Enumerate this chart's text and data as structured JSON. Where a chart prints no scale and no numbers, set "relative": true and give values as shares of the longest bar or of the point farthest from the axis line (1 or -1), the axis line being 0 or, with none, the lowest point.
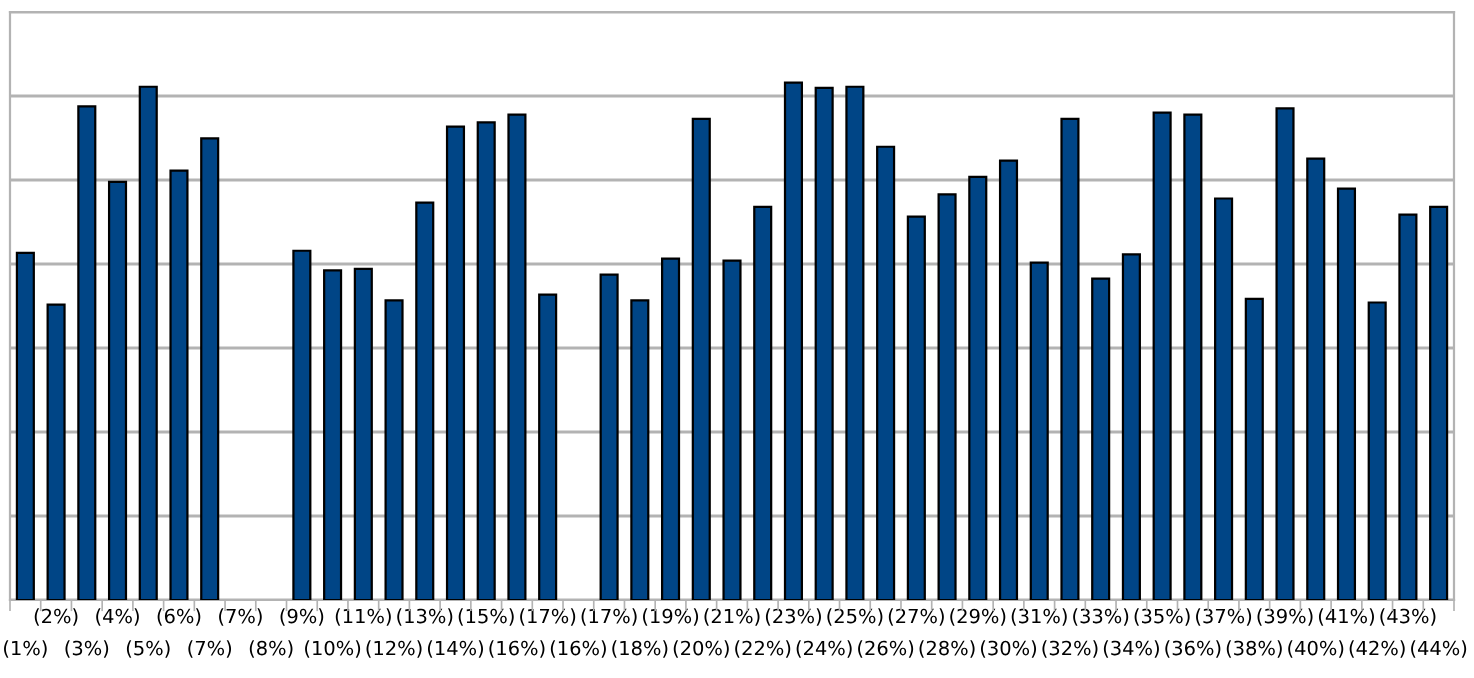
{
  "chart_data": {
    "type": "bar",
    "relative": true,
    "grid": "y",
    "categories": [
      "(1%)",
      "(2%)",
      "(3%)",
      "(4%)",
      "(5%)",
      "(6%)",
      "(7%)",
      "(7%)",
      "(8%)",
      "(9%)",
      "(10%)",
      "(11%)",
      "(12%)",
      "(13%)",
      "(14%)",
      "(15%)",
      "(16%)",
      "(17%)",
      "(16%)",
      "(17%)",
      "(18%)",
      "(19%)",
      "(20%)",
      "(21%)",
      "(22%)",
      "(23%)",
      "(24%)",
      "(25%)",
      "(26%)",
      "(27%)",
      "(28%)",
      "(29%)",
      "(30%)",
      "(31%)",
      "(32%)",
      "(33%)",
      "(34%)",
      "(35%)",
      "(36%)",
      "(37%)",
      "(38%)",
      "(39%)",
      "(40%)",
      "(41%)",
      "(42%)",
      "(43%)",
      "(44%)"
    ],
    "series": [
      {
        "color": "#004586",
        "values": [
          0.671,
          0.571,
          0.954,
          0.808,
          0.992,
          0.83,
          0.892,
          null,
          null,
          0.675,
          0.637,
          0.64,
          0.579,
          0.768,
          0.915,
          0.923,
          0.938,
          0.59,
          null,
          0.629,
          0.579,
          0.66,
          0.93,
          0.656,
          0.76,
          1,
          0.99,
          0.992,
          0.876,
          0.741,
          0.784,
          0.818,
          0.849,
          0.652,
          0.93,
          0.621,
          0.668,
          0.942,
          0.938,
          0.776,
          0.582,
          0.95,
          0.853,
          0.795,
          0.575,
          0.745,
          0.76
        ]
      }
    ]
  }
}
